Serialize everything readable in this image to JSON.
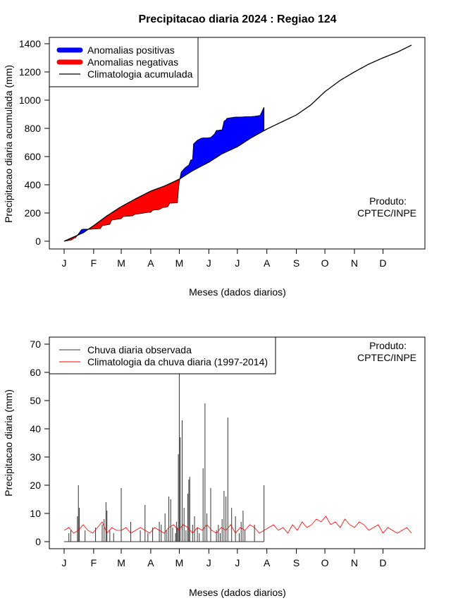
{
  "colors": {
    "positive": "#0000ff",
    "negative": "#ff0000",
    "line": "#000000",
    "climatology_daily": "#ff0000",
    "observed_daily": "#333333"
  },
  "credit": {
    "line1": "Produto:",
    "line2": "CPTEC/INPE"
  },
  "chart_data": [
    {
      "type": "area",
      "title": "Precipitacao diaria 2024 : Regiao 124",
      "xlabel": "Meses (dados diarios)",
      "ylabel": "Precipitacao diaria acumulada (mm)",
      "ylim": [
        0,
        1400
      ],
      "yticks": [
        0,
        200,
        400,
        600,
        800,
        1000,
        1200,
        1400
      ],
      "month_ticks": [
        "J",
        "F",
        "M",
        "A",
        "M",
        "J",
        "J",
        "A",
        "S",
        "O",
        "N",
        "D"
      ],
      "month_start_days": [
        0,
        31,
        60,
        91,
        121,
        152,
        182,
        213,
        244,
        274,
        305,
        335
      ],
      "legend": [
        "Anomalias positivas",
        "Anomalias negativas",
        "Climatologia acumulada"
      ],
      "climatology_cumulative": {
        "days": [
          0,
          10,
          20,
          31,
          45,
          60,
          75,
          91,
          105,
          110,
          121,
          135,
          152,
          166,
          182,
          197,
          213,
          230,
          244,
          259,
          274,
          290,
          305,
          320,
          335,
          350,
          365
        ],
        "values": [
          0,
          30,
          60,
          110,
          180,
          245,
          300,
          355,
          390,
          405,
          440,
          500,
          560,
          620,
          670,
          735,
          795,
          850,
          895,
          965,
          1060,
          1140,
          1200,
          1255,
          1300,
          1340,
          1390
        ]
      },
      "observed_cumulative": {
        "days": [
          0,
          8,
          10,
          12,
          16,
          18,
          20,
          28,
          38,
          40,
          48,
          50,
          60,
          62,
          72,
          74,
          84,
          88,
          91,
          93,
          100,
          104,
          106,
          109,
          111,
          119,
          120,
          121,
          123,
          127,
          129,
          131,
          133,
          135,
          136,
          140,
          144,
          146,
          150,
          154,
          158,
          160,
          161,
          166,
          168,
          170,
          171,
          173,
          175,
          180,
          185,
          190,
          196,
          200,
          206,
          210
        ],
        "values": [
          0,
          10,
          20,
          25,
          60,
          80,
          85,
          85,
          90,
          110,
          120,
          150,
          160,
          175,
          180,
          190,
          200,
          205,
          205,
          220,
          225,
          240,
          240,
          245,
          270,
          272,
          360,
          420,
          490,
          520,
          530,
          540,
          575,
          580,
          690,
          715,
          730,
          732,
          732,
          735,
          760,
          785,
          785,
          790,
          850,
          860,
          870,
          873,
          875,
          880,
          880,
          882,
          883,
          885,
          892,
          950
        ]
      },
      "observed_end_day": 210
    },
    {
      "type": "line",
      "xlabel": "Meses (dados diarios)",
      "ylabel": "Precipitacao diaria (mm)",
      "ylim": [
        0,
        70
      ],
      "yticks": [
        0,
        10,
        20,
        30,
        40,
        50,
        60,
        70
      ],
      "month_ticks": [
        "J",
        "F",
        "M",
        "A",
        "M",
        "J",
        "J",
        "A",
        "S",
        "O",
        "N",
        "D"
      ],
      "month_start_days": [
        0,
        31,
        60,
        91,
        121,
        152,
        182,
        213,
        244,
        274,
        305,
        335
      ],
      "legend": [
        "Chuva diaria observada",
        "Climatologia da chuva diaria (1997-2014)"
      ],
      "climatology_daily": {
        "days": [
          0,
          5,
          10,
          15,
          20,
          25,
          30,
          35,
          40,
          45,
          50,
          55,
          60,
          65,
          70,
          75,
          80,
          85,
          90,
          95,
          100,
          105,
          110,
          115,
          120,
          125,
          130,
          135,
          140,
          145,
          150,
          155,
          160,
          165,
          170,
          175,
          180,
          185,
          190,
          195,
          200,
          205,
          210,
          215,
          220,
          225,
          230,
          235,
          240,
          245,
          250,
          255,
          260,
          265,
          270,
          275,
          280,
          285,
          290,
          295,
          300,
          305,
          310,
          315,
          320,
          325,
          330,
          335,
          340,
          345,
          350,
          355,
          360,
          365
        ],
        "values": [
          4,
          5,
          3,
          4,
          6,
          4,
          3,
          5,
          7,
          3,
          5,
          4,
          4,
          5,
          3,
          4,
          5,
          4,
          3,
          5,
          4,
          3,
          5,
          6,
          4,
          6,
          5,
          3,
          5,
          4,
          6,
          4,
          3,
          5,
          4,
          6,
          3,
          5,
          4,
          6,
          5,
          3,
          4,
          5,
          6,
          4,
          5,
          3,
          6,
          4,
          7,
          5,
          6,
          8,
          7,
          9,
          6,
          7,
          5,
          8,
          6,
          5,
          7,
          6,
          4,
          5,
          6,
          3,
          5,
          4,
          3,
          4,
          5,
          3
        ]
      },
      "observed_daily": {
        "days": [
          5,
          7,
          14,
          15,
          16,
          22,
          33,
          40,
          42,
          44,
          45,
          48,
          52,
          60,
          70,
          80,
          85,
          88,
          93,
          100,
          102,
          106,
          108,
          110,
          112,
          114,
          117,
          118,
          119,
          120,
          121,
          122,
          124,
          126,
          128,
          130,
          131,
          132,
          135,
          137,
          140,
          142,
          146,
          148,
          150,
          154,
          160,
          162,
          164,
          166,
          168,
          170,
          172,
          176,
          180,
          184,
          186,
          188,
          190,
          200,
          210
        ],
        "values": [
          3,
          4,
          9,
          20,
          12,
          4,
          5,
          6,
          8,
          14,
          11,
          4,
          3,
          19,
          7,
          4,
          13,
          3,
          5,
          7,
          6,
          10,
          4,
          16,
          15,
          5,
          3,
          7,
          5,
          31,
          60,
          37,
          43,
          12,
          4,
          17,
          22,
          23,
          6,
          9,
          5,
          3,
          26,
          49,
          10,
          19,
          4,
          6,
          3,
          8,
          18,
          16,
          44,
          12,
          9,
          3,
          7,
          11,
          4,
          6,
          20
        ]
      }
    }
  ]
}
